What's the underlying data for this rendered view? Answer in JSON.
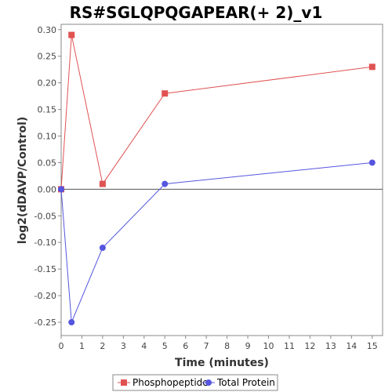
{
  "chart_data": {
    "type": "line",
    "title": "RS#SGLQPQGAPEAR(+ 2)_v1",
    "xlabel": "Time (minutes)",
    "ylabel": "log2(dDAVP/Control)",
    "xlim": [
      0,
      15.5
    ],
    "ylim": [
      -0.275,
      0.31
    ],
    "xticks": [
      0,
      1,
      2,
      3,
      4,
      5,
      6,
      7,
      8,
      9,
      10,
      11,
      12,
      13,
      14,
      15
    ],
    "yticks": [
      -0.25,
      -0.2,
      -0.15,
      -0.1,
      -0.05,
      0.0,
      0.05,
      0.1,
      0.15,
      0.2,
      0.25,
      0.3
    ],
    "ytick_labels": [
      "-0.25",
      "-0.20",
      "-0.15",
      "-0.10",
      "-0.05",
      "0.00",
      "0.05",
      "0.10",
      "0.15",
      "0.20",
      "0.25",
      "0.30"
    ],
    "zero_line": true,
    "grid": false,
    "legend_position": "bottom",
    "series": [
      {
        "name": "Phosphopeptide",
        "color": "#e05252",
        "marker": "square",
        "points": [
          [
            0,
            0.0
          ],
          [
            0.5,
            0.29
          ],
          [
            2,
            0.01
          ],
          [
            5,
            0.18
          ],
          [
            15,
            0.23
          ]
        ]
      },
      {
        "name": "Total Protein",
        "color": "#5555e0",
        "marker": "circle",
        "points": [
          [
            0,
            0.0
          ],
          [
            0.5,
            -0.25
          ],
          [
            2,
            -0.11
          ],
          [
            5,
            0.01
          ],
          [
            15,
            0.05
          ]
        ]
      }
    ]
  }
}
